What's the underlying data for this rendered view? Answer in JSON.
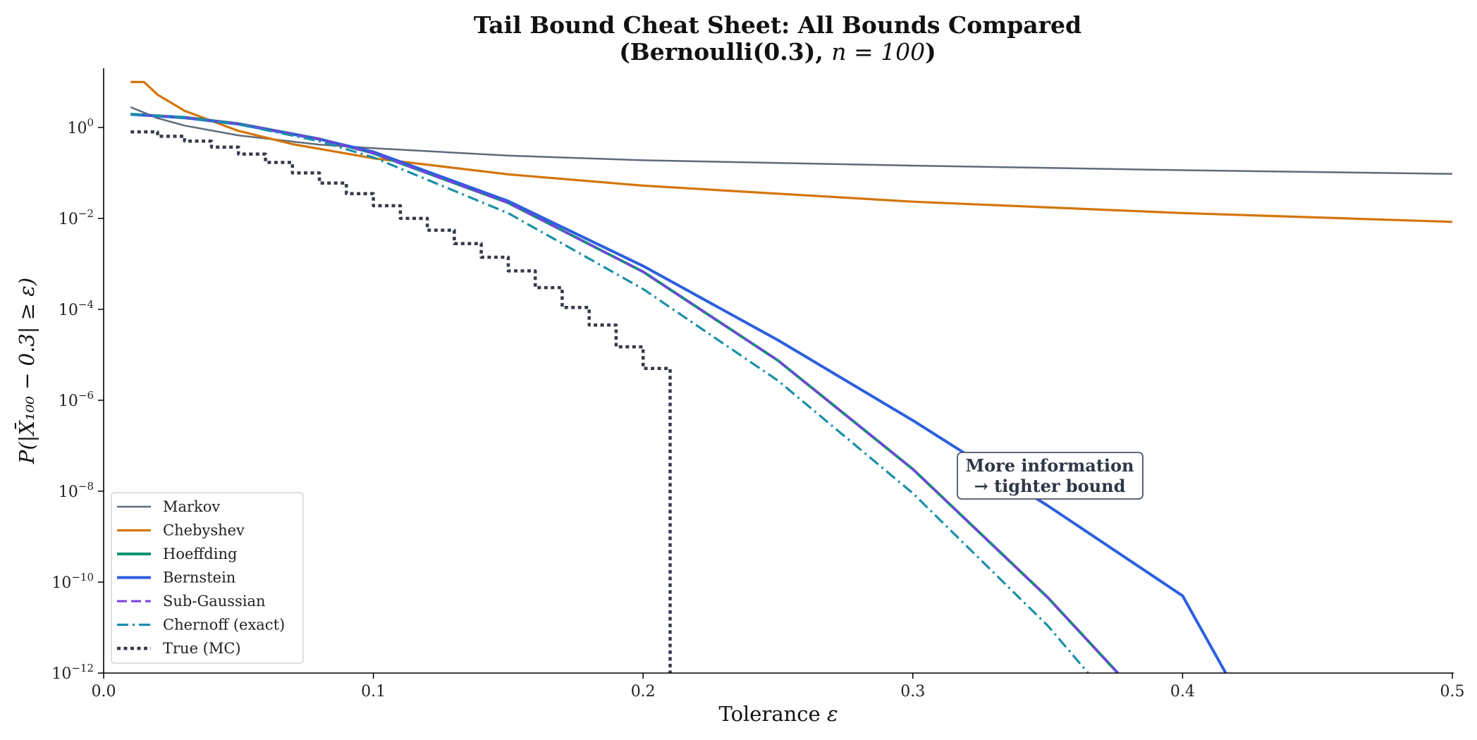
{
  "chart_data": {
    "type": "line",
    "title_line1": "Tail Bound Cheat Sheet: All Bounds Compared",
    "title_line2_prefix": "(Bernoulli(0.3), ",
    "title_line2_math": "n = 100",
    "title_line2_suffix": ")",
    "xlabel_text": "Tolerance ",
    "xlabel_symbol": "ε",
    "ylabel": "P(|X̄₁₀₀ − 0.3| ≥ ε)",
    "xlim": [
      0.0,
      0.5
    ],
    "ylim_log10": [
      -12,
      1.3
    ],
    "log_y": true,
    "grid": false,
    "legend_placement": "lower-left",
    "x_ticks": [
      {
        "value": 0.0,
        "label": "0.0"
      },
      {
        "value": 0.1,
        "label": "0.1"
      },
      {
        "value": 0.2,
        "label": "0.2"
      },
      {
        "value": 0.3,
        "label": "0.3"
      },
      {
        "value": 0.4,
        "label": "0.4"
      },
      {
        "value": 0.5,
        "label": "0.5"
      }
    ],
    "y_ticks": [
      {
        "exp": 0,
        "base": "10",
        "sup": "0"
      },
      {
        "exp": -2,
        "base": "10",
        "sup": "−2"
      },
      {
        "exp": -4,
        "base": "10",
        "sup": "−4"
      },
      {
        "exp": -6,
        "base": "10",
        "sup": "−6"
      },
      {
        "exp": -8,
        "base": "10",
        "sup": "−8"
      },
      {
        "exp": -10,
        "base": "10",
        "sup": "−10"
      },
      {
        "exp": -12,
        "base": "10",
        "sup": "−12"
      }
    ],
    "series": [
      {
        "name": "Markov",
        "color": "#5f6b7a",
        "style": "solid",
        "width": 2.5,
        "x": [
          0.01,
          0.02,
          0.03,
          0.05,
          0.08,
          0.1,
          0.15,
          0.2,
          0.3,
          0.4,
          0.5
        ],
        "y": [
          2.8,
          1.6,
          1.1,
          0.67,
          0.42,
          0.35,
          0.24,
          0.19,
          0.145,
          0.115,
          0.095
        ]
      },
      {
        "name": "Chebyshev",
        "color": "#d4750a",
        "style": "solid",
        "width": 3.2,
        "x": [
          0.01,
          0.015,
          0.02,
          0.03,
          0.05,
          0.07,
          0.1,
          0.15,
          0.2,
          0.3,
          0.4,
          0.5
        ],
        "y": [
          10.0,
          10.0,
          5.25,
          2.33,
          0.84,
          0.43,
          0.21,
          0.093,
          0.0525,
          0.0233,
          0.0131,
          0.0084
        ]
      },
      {
        "name": "Hoeffding",
        "color": "#0e9470",
        "style": "solid",
        "width": 4,
        "x": [
          0.01,
          0.03,
          0.05,
          0.08,
          0.1,
          0.15,
          0.2,
          0.25,
          0.3,
          0.35,
          0.376
        ],
        "y": [
          1.96,
          1.67,
          1.21,
          0.56,
          0.27,
          0.022,
          0.00067,
          7.5e-06,
          3.05e-08,
          4.6e-11,
          1e-12
        ]
      },
      {
        "name": "Bernstein",
        "color": "#2b5fde",
        "style": "solid",
        "width": 4,
        "x": [
          0.01,
          0.03,
          0.05,
          0.08,
          0.1,
          0.15,
          0.2,
          0.25,
          0.3,
          0.35,
          0.4,
          0.416
        ],
        "y": [
          1.95,
          1.63,
          1.18,
          0.55,
          0.29,
          0.024,
          0.0009,
          2.1e-05,
          3.6e-07,
          4.8e-09,
          5e-11,
          1e-12
        ]
      },
      {
        "name": "Sub-Gaussian",
        "color": "#7b3fe0",
        "style": "dashed",
        "width": 3,
        "x": [
          0.01,
          0.03,
          0.05,
          0.08,
          0.1,
          0.15,
          0.2,
          0.25,
          0.3,
          0.35,
          0.376
        ],
        "y": [
          1.96,
          1.67,
          1.21,
          0.56,
          0.27,
          0.022,
          0.00067,
          7.5e-06,
          3.05e-08,
          4.6e-11,
          1e-12
        ]
      },
      {
        "name": "Chernoff (exact)",
        "color": "#1a8fa8",
        "style": "dashdot",
        "width": 3.2,
        "x": [
          0.01,
          0.03,
          0.05,
          0.08,
          0.1,
          0.15,
          0.2,
          0.25,
          0.3,
          0.35,
          0.365
        ],
        "y": [
          1.96,
          1.65,
          1.17,
          0.5,
          0.22,
          0.013,
          0.00028,
          2.7e-06,
          9e-09,
          1.1e-11,
          1e-12
        ]
      },
      {
        "name": "True (MC)",
        "color": "#363b4a",
        "style": "dotted",
        "width": 4.5,
        "step": true,
        "x": [
          0.01,
          0.02,
          0.03,
          0.04,
          0.05,
          0.06,
          0.07,
          0.08,
          0.09,
          0.1,
          0.11,
          0.12,
          0.13,
          0.14,
          0.15,
          0.16,
          0.17,
          0.18,
          0.19,
          0.2,
          0.21,
          0.21
        ],
        "y": [
          0.8,
          0.64,
          0.5,
          0.37,
          0.26,
          0.17,
          0.1,
          0.06,
          0.035,
          0.019,
          0.01,
          0.0055,
          0.0028,
          0.0014,
          0.0007,
          0.0003,
          0.00011,
          4.5e-05,
          1.5e-05,
          5e-06,
          4.5e-06,
          1e-12
        ]
      }
    ],
    "annotation": {
      "lines": [
        "More information",
        "→ tighter bound"
      ],
      "x": 0.35,
      "y": 1.2e-08
    }
  }
}
